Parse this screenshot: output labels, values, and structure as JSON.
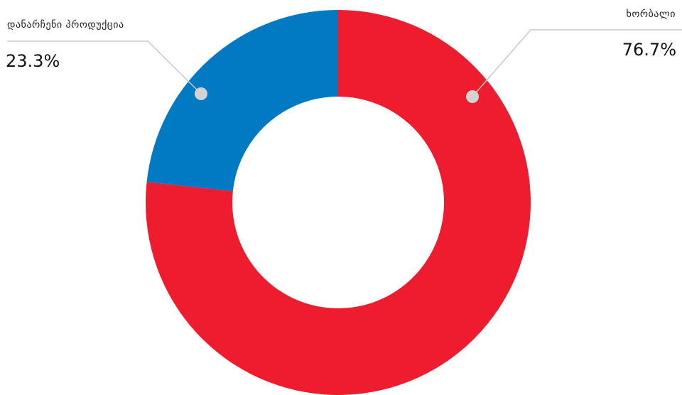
{
  "chart_data": {
    "type": "pie",
    "variant": "donut",
    "legend": "none",
    "slices": [
      {
        "label": "ხორბალი",
        "value": 76.7,
        "value_label": "76.7%",
        "color": "#ed1c2e"
      },
      {
        "label": "დანარჩენი პროდუქცია",
        "value": 23.3,
        "value_label": "23.3%",
        "color": "#0179c3"
      }
    ]
  }
}
